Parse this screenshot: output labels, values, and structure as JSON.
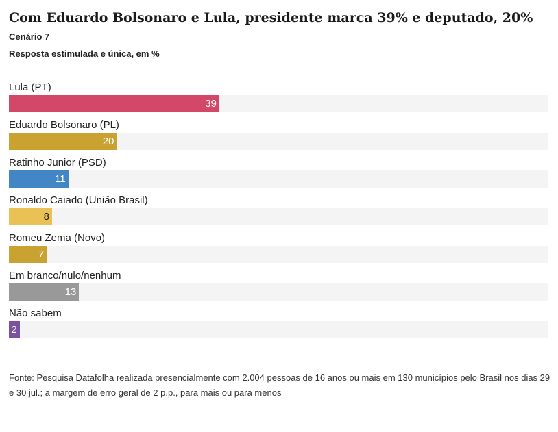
{
  "header": {
    "title": "Com Eduardo Bolsonaro e Lula, presidente marca 39% e deputado, 20%",
    "subtitle": "Cenário 7",
    "note": "Resposta estimulada e única, em %"
  },
  "chart_data": {
    "type": "bar",
    "orientation": "horizontal",
    "title": "Com Eduardo Bolsonaro e Lula, presidente marca 39% e deputado, 20%",
    "subtitle": "Cenário 7",
    "xlabel": "",
    "ylabel": "",
    "xlim": [
      0,
      100
    ],
    "grid": false,
    "categories": [
      "Lula (PT)",
      "Eduardo Bolsonaro (PL)",
      "Ratinho Junior (PSD)",
      "Ronaldo Caiado (União Brasil)",
      "Romeu Zema (Novo)",
      "Em branco/nulo/nenhum",
      "Não sabem"
    ],
    "values": [
      39,
      20,
      11,
      8,
      7,
      13,
      2
    ],
    "colors": [
      "#d34868",
      "#c9a232",
      "#4286c6",
      "#e9c155",
      "#c9a232",
      "#999999",
      "#7a529e"
    ],
    "label_colors": [
      "#ffffff",
      "#ffffff",
      "#ffffff",
      "#222222",
      "#ffffff",
      "#ffffff",
      "#ffffff"
    ]
  },
  "footer": {
    "source": "Fonte: Pesquisa Datafolha realizada presencialmente com 2.004 pessoas de 16 anos ou mais em 130 municípios pelo Brasil nos dias 29 e 30 jul.; a margem de erro geral de 2 p.p., para mais ou para menos"
  }
}
